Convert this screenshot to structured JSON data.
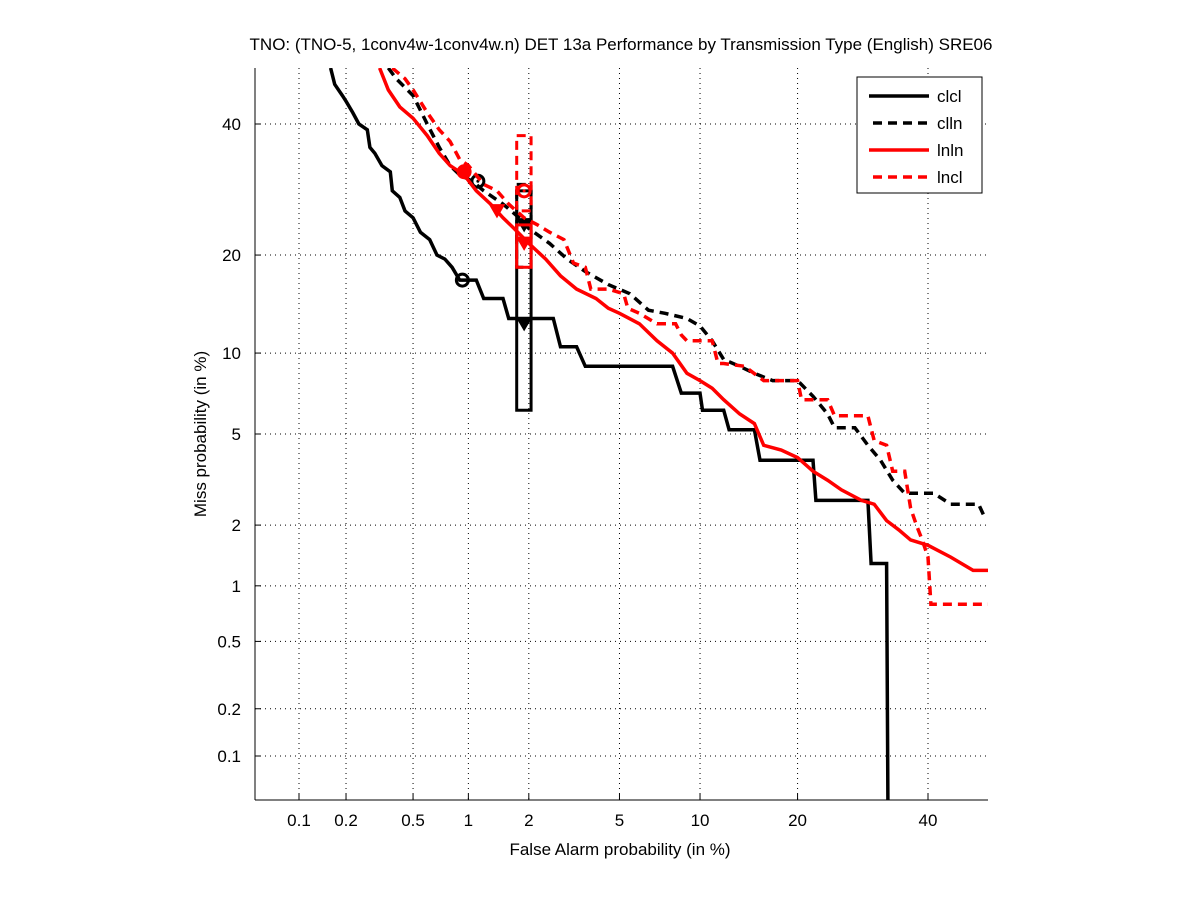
{
  "chart_data": {
    "type": "line",
    "title": "TNO: (TNO-5, 1conv4w-1conv4w.n) DET 13a Performance by Transmission Type (English) SRE06",
    "xlabel": "False Alarm probability (in %)",
    "ylabel": "Miss probability (in %)",
    "xscale": "probit",
    "yscale": "probit",
    "xlim": [
      0.05,
      52
    ],
    "ylim": [
      0.05,
      52
    ],
    "xticks": [
      0.1,
      0.2,
      0.5,
      1,
      2,
      5,
      10,
      20,
      40
    ],
    "xtick_labels": [
      "0.1",
      "0.2",
      "0.5",
      "1",
      "2",
      "5",
      "10",
      "20",
      "40"
    ],
    "yticks": [
      0.1,
      0.2,
      0.5,
      1,
      2,
      5,
      10,
      20,
      40
    ],
    "ytick_labels": [
      "0.1",
      "0.2",
      "0.5",
      "1",
      "2",
      "5",
      "10",
      "20",
      "40"
    ],
    "grid": true,
    "legend_position": "top-right",
    "series": [
      {
        "name": "clcl",
        "color": "#000000",
        "style": "solid",
        "points": [
          [
            0.16,
            50
          ],
          [
            0.17,
            47
          ],
          [
            0.19,
            45
          ],
          [
            0.2,
            44
          ],
          [
            0.22,
            42
          ],
          [
            0.24,
            40
          ],
          [
            0.27,
            39
          ],
          [
            0.28,
            36
          ],
          [
            0.3,
            35
          ],
          [
            0.33,
            33
          ],
          [
            0.37,
            32
          ],
          [
            0.38,
            29
          ],
          [
            0.42,
            28
          ],
          [
            0.45,
            26
          ],
          [
            0.5,
            25
          ],
          [
            0.55,
            23
          ],
          [
            0.62,
            22
          ],
          [
            0.68,
            20
          ],
          [
            0.75,
            19.5
          ],
          [
            0.82,
            18.5
          ],
          [
            0.9,
            17
          ],
          [
            1.0,
            17
          ],
          [
            1.1,
            17
          ],
          [
            1.2,
            15
          ],
          [
            1.5,
            15
          ],
          [
            1.6,
            13
          ],
          [
            1.9,
            13
          ],
          [
            2.6,
            13
          ],
          [
            2.8,
            10.5
          ],
          [
            3.3,
            10.5
          ],
          [
            3.6,
            9
          ],
          [
            4.5,
            9
          ],
          [
            8,
            9
          ],
          [
            8.6,
            7.2
          ],
          [
            10,
            7.2
          ],
          [
            10.2,
            6.2
          ],
          [
            12,
            6.2
          ],
          [
            12.5,
            5.2
          ],
          [
            15,
            5.2
          ],
          [
            15.6,
            3.9
          ],
          [
            20,
            3.9
          ],
          [
            22,
            3.9
          ],
          [
            22.4,
            2.6
          ],
          [
            26,
            2.6
          ],
          [
            30,
            2.6
          ],
          [
            30.5,
            1.3
          ],
          [
            33,
            1.3
          ],
          [
            33.2,
            0.05
          ]
        ],
        "act_marker": {
          "fa": 0.93,
          "miss": 17
        },
        "min_marker": {
          "fa": 1.9,
          "miss": 12.5
        },
        "confidence_box": {
          "fa": [
            1.75,
            2.05
          ],
          "miss": [
            6.2,
            29
          ]
        }
      },
      {
        "name": "clln",
        "color": "#000000",
        "style": "dashed",
        "points": [
          [
            0.36,
            50
          ],
          [
            0.4,
            48
          ],
          [
            0.5,
            45
          ],
          [
            0.6,
            40
          ],
          [
            0.7,
            36
          ],
          [
            0.8,
            33
          ],
          [
            0.9,
            31.5
          ],
          [
            1.05,
            30.5
          ],
          [
            1.2,
            29
          ],
          [
            1.5,
            27
          ],
          [
            1.8,
            25
          ],
          [
            2.0,
            23.5
          ],
          [
            2.5,
            21.5
          ],
          [
            3.0,
            19.5
          ],
          [
            3.6,
            18
          ],
          [
            4.5,
            16.5
          ],
          [
            5.5,
            15.5
          ],
          [
            6.5,
            13.8
          ],
          [
            7.5,
            13.5
          ],
          [
            9,
            13
          ],
          [
            10,
            12.3
          ],
          [
            11,
            11
          ],
          [
            12,
            9.5
          ],
          [
            13.5,
            9
          ],
          [
            15,
            8.5
          ],
          [
            17,
            8
          ],
          [
            20,
            8
          ],
          [
            22,
            7
          ],
          [
            24,
            6
          ],
          [
            25,
            5.3
          ],
          [
            28,
            5.3
          ],
          [
            30,
            4.5
          ],
          [
            32,
            3.9
          ],
          [
            34,
            3.2
          ],
          [
            36,
            2.8
          ],
          [
            38,
            2.8
          ],
          [
            41,
            2.8
          ],
          [
            44,
            2.5
          ],
          [
            49,
            2.5
          ],
          [
            50,
            2.2
          ]
        ],
        "act_marker": {
          "fa": 1.12,
          "miss": 30.5
        },
        "min_marker": {
          "fa": 1.9,
          "miss": 24
        },
        "confidence_box": {
          "fa": [
            1.75,
            2.05
          ],
          "miss": [
            18.5,
            30
          ]
        }
      },
      {
        "name": "lnln",
        "color": "#ff0000",
        "style": "solid",
        "points": [
          [
            0.32,
            50
          ],
          [
            0.36,
            46
          ],
          [
            0.42,
            43
          ],
          [
            0.5,
            41
          ],
          [
            0.6,
            38
          ],
          [
            0.7,
            35
          ],
          [
            0.8,
            33
          ],
          [
            0.95,
            31.5
          ],
          [
            1.1,
            29
          ],
          [
            1.3,
            27
          ],
          [
            1.5,
            25
          ],
          [
            1.7,
            23.5
          ],
          [
            2.0,
            21.5
          ],
          [
            2.4,
            19.5
          ],
          [
            2.8,
            17.5
          ],
          [
            3.3,
            16
          ],
          [
            4,
            15
          ],
          [
            4.5,
            14
          ],
          [
            5,
            13.5
          ],
          [
            6,
            12.5
          ],
          [
            7,
            11
          ],
          [
            8,
            10
          ],
          [
            9,
            8.5
          ],
          [
            10,
            8
          ],
          [
            11,
            7.5
          ],
          [
            12,
            6.8
          ],
          [
            13.5,
            6
          ],
          [
            15,
            5.5
          ],
          [
            16,
            4.5
          ],
          [
            18,
            4.3
          ],
          [
            20,
            4
          ],
          [
            22,
            3.5
          ],
          [
            24,
            3.2
          ],
          [
            26,
            2.9
          ],
          [
            29,
            2.6
          ],
          [
            31,
            2.5
          ],
          [
            33,
            2.1
          ],
          [
            35,
            1.9
          ],
          [
            37,
            1.7
          ],
          [
            40,
            1.6
          ],
          [
            44,
            1.4
          ],
          [
            48,
            1.2
          ],
          [
            52,
            1.2
          ]
        ],
        "act_marker": {
          "fa": 0.95,
          "miss": 32
        },
        "min_marker": {
          "fa": 1.4,
          "miss": 26
        },
        "confidence_box": {
          "fa": [
            1.75,
            2.05
          ],
          "miss": [
            18.5,
            24
          ]
        }
      },
      {
        "name": "lncl",
        "color": "#ff0000",
        "style": "dashed",
        "points": [
          [
            0.38,
            50
          ],
          [
            0.45,
            48
          ],
          [
            0.5,
            46
          ],
          [
            0.6,
            42
          ],
          [
            0.7,
            39
          ],
          [
            0.8,
            37
          ],
          [
            0.9,
            34
          ],
          [
            1.0,
            33
          ],
          [
            1.2,
            30
          ],
          [
            1.4,
            29
          ],
          [
            1.6,
            27
          ],
          [
            1.9,
            25
          ],
          [
            2.2,
            24
          ],
          [
            2.5,
            23
          ],
          [
            2.9,
            22
          ],
          [
            3.2,
            19
          ],
          [
            3.6,
            18.5
          ],
          [
            3.8,
            16
          ],
          [
            4.5,
            16
          ],
          [
            5.2,
            15.5
          ],
          [
            5.4,
            14
          ],
          [
            6,
            13.5
          ],
          [
            7,
            12.5
          ],
          [
            8.2,
            12.5
          ],
          [
            8.6,
            11.5
          ],
          [
            9,
            11
          ],
          [
            11,
            11
          ],
          [
            11.5,
            9.2
          ],
          [
            12,
            9.2
          ],
          [
            14,
            9
          ],
          [
            16,
            8
          ],
          [
            20,
            8
          ],
          [
            20.5,
            6.8
          ],
          [
            24,
            6.8
          ],
          [
            25,
            5.9
          ],
          [
            30,
            5.9
          ],
          [
            31,
            4.7
          ],
          [
            33,
            4.5
          ],
          [
            34,
            3.5
          ],
          [
            36,
            3.5
          ],
          [
            37,
            2.4
          ],
          [
            38,
            2.0
          ],
          [
            39,
            1.7
          ],
          [
            40,
            1.4
          ],
          [
            40.5,
            0.8
          ],
          [
            52,
            0.8
          ]
        ],
        "act_marker": {
          "fa": 1.9,
          "miss": 29
        },
        "min_marker": {
          "fa": 1.9,
          "miss": 21.5
        },
        "confidence_box": {
          "fa": [
            1.75,
            2.05
          ],
          "miss": [
            26,
            38
          ]
        }
      }
    ]
  }
}
